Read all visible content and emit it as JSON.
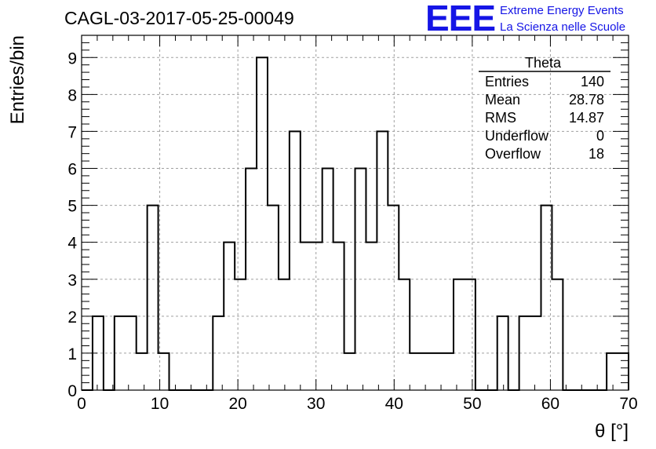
{
  "run_title": "CAGL-03-2017-05-25-00049",
  "logo": {
    "mark": "EEE",
    "line1": "Extreme Energy Events",
    "line2": "La Scienza nelle Scuole",
    "color": "#1515e6"
  },
  "stats": {
    "title": "Theta",
    "rows": [
      {
        "label": "Entries",
        "value": "140"
      },
      {
        "label": "Mean",
        "value": "28.78"
      },
      {
        "label": "RMS",
        "value": "14.87"
      },
      {
        "label": "Underflow",
        "value": "0"
      },
      {
        "label": "Overflow",
        "value": "18"
      }
    ]
  },
  "chart_data": {
    "type": "bar",
    "histogram": true,
    "title": "",
    "xlabel": "θ [°]",
    "ylabel": "Entries/bin",
    "xlim": [
      0,
      70
    ],
    "ylim": [
      0,
      9.6
    ],
    "x_ticks": [
      0,
      10,
      20,
      30,
      40,
      50,
      60,
      70
    ],
    "y_ticks": [
      0,
      1,
      2,
      3,
      4,
      5,
      6,
      7,
      8,
      9
    ],
    "grid": true,
    "bin_edges": [
      0,
      1.4,
      2.8,
      4.2,
      5.6,
      7.0,
      8.4,
      9.8,
      11.2,
      12.6,
      14.0,
      15.4,
      16.8,
      18.2,
      19.6,
      21.0,
      22.4,
      23.8,
      25.2,
      26.6,
      28.0,
      29.4,
      30.8,
      32.2,
      33.6,
      35.0,
      36.4,
      37.8,
      39.2,
      40.6,
      42.0,
      43.4,
      44.8,
      46.2,
      47.6,
      49.0,
      50.4,
      51.8,
      53.2,
      54.6,
      56.0,
      57.4,
      58.8,
      60.2,
      61.6,
      63.0,
      64.4,
      65.8,
      67.2,
      68.6,
      70.0
    ],
    "values": [
      0,
      2,
      0,
      2,
      2,
      1,
      5,
      1,
      0,
      0,
      0,
      0,
      2,
      4,
      3,
      6,
      9,
      5,
      3,
      7,
      4,
      4,
      6,
      4,
      1,
      6,
      4,
      7,
      5,
      3,
      1,
      1,
      1,
      1,
      3,
      3,
      0,
      0,
      2,
      0,
      2,
      2,
      5,
      3,
      0,
      0,
      0,
      0,
      1,
      1
    ]
  }
}
